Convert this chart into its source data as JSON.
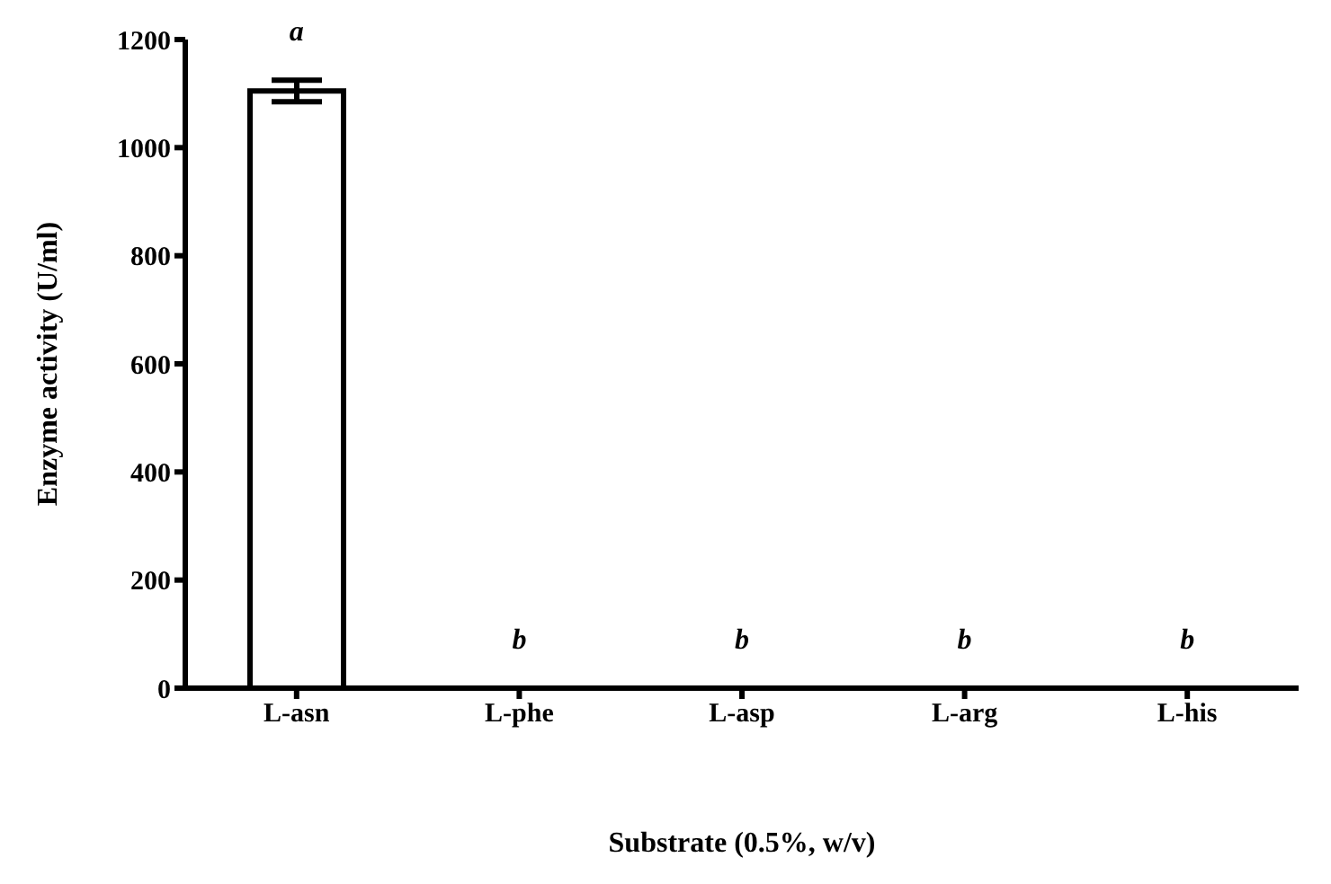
{
  "chart_data": {
    "type": "bar",
    "xlabel": "Substrate (0.5%, w/v)",
    "ylabel": "Enzyme activity (U/ml)",
    "categories": [
      "L-asn",
      "L-phe",
      "L-asp",
      "L-arg",
      "L-his"
    ],
    "values": [
      1105,
      0,
      0,
      0,
      0
    ],
    "errors": [
      20,
      null,
      null,
      null,
      null
    ],
    "color": "#ffffff",
    "ylim": [
      0,
      1200
    ],
    "yticks": [
      0,
      200,
      400,
      600,
      800,
      1000,
      1200
    ],
    "grid": false,
    "legend": false,
    "annotations": [
      {
        "text": "a",
        "x": "L-asn",
        "y": 1105
      },
      {
        "text": "b",
        "x": "L-phe",
        "y": 0
      },
      {
        "text": "b",
        "x": "L-asp",
        "y": 0
      },
      {
        "text": "b",
        "x": "L-arg",
        "y": 0
      },
      {
        "text": "b",
        "x": "L-his",
        "y": 0
      }
    ]
  }
}
